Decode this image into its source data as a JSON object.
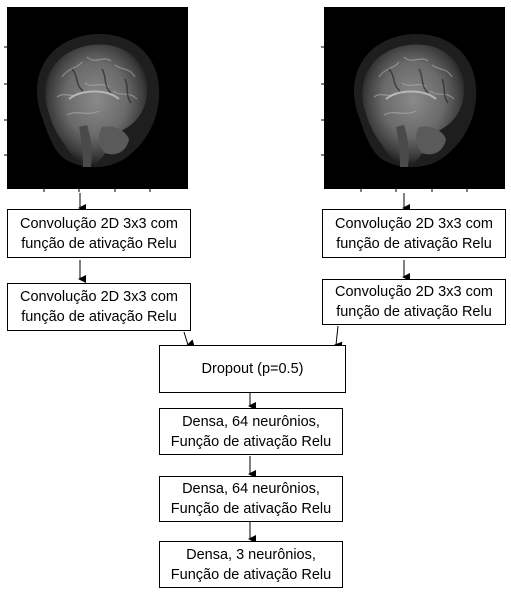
{
  "diagram": {
    "left_branch": {
      "conv1": "Convolução 2D 3x3 com\nfunção de ativação Relu",
      "conv2": "Convolução 2D 3x3 com\nfunção de ativação Relu"
    },
    "right_branch": {
      "conv1": "Convolução 2D 3x3 com\nfunção de ativação Relu",
      "conv2": "Convolução 2D 3x3 com\nfunção de ativação Relu"
    },
    "dropout": "Dropout (p=0.5)",
    "dense1": "Densa, 64 neurônios,\nFunção de ativação Relu",
    "dense2": "Densa, 64 neurônios,\nFunção de ativação Relu",
    "dense3": "Densa, 3 neurônios,\nFunção de ativação Relu"
  },
  "colors": {
    "line": "#000000",
    "box_border": "#000000",
    "image_background": "#000000"
  },
  "icons": {
    "input_images": "mri-brain-sagittal-image"
  }
}
